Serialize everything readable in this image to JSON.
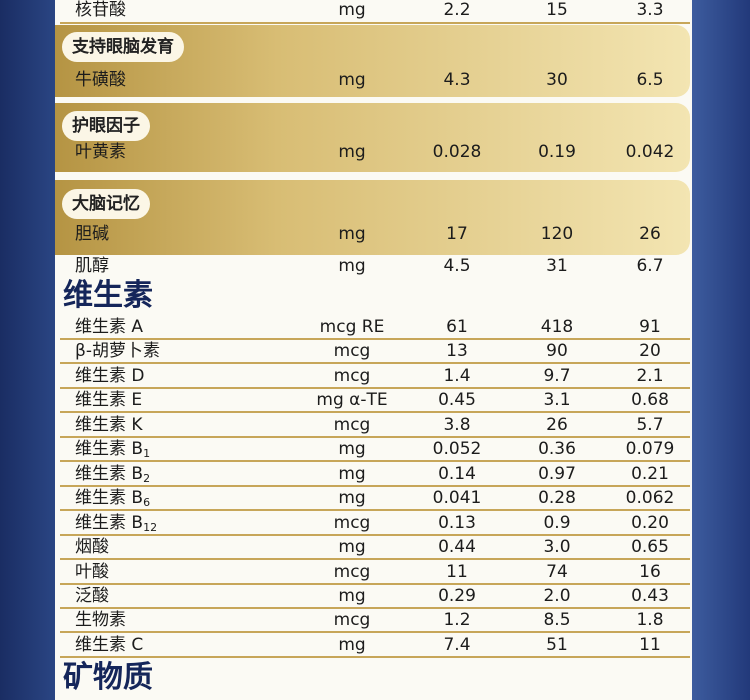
{
  "top_rows": [
    {
      "name": "核苷酸",
      "unit": "mg",
      "values": [
        "2.2",
        "15",
        "3.3"
      ]
    }
  ],
  "groups": [
    {
      "label": "支持眼脑发育",
      "rows": [
        {
          "name": "牛磺酸",
          "unit": "mg",
          "values": [
            "4.3",
            "30",
            "6.5"
          ]
        }
      ]
    },
    {
      "label": "护眼因子",
      "rows": [
        {
          "name": "叶黄素",
          "unit": "mg",
          "values": [
            "0.028",
            "0.19",
            "0.042"
          ]
        }
      ]
    },
    {
      "label": "大脑记忆",
      "rows": [
        {
          "name": "胆碱",
          "unit": "mg",
          "values": [
            "17",
            "120",
            "26"
          ]
        }
      ]
    }
  ],
  "after_rows": [
    {
      "name": "肌醇",
      "unit": "mg",
      "values": [
        "4.5",
        "31",
        "6.7"
      ]
    }
  ],
  "sections": [
    {
      "title": "维生素",
      "rows": [
        {
          "name": "维生素 A",
          "unit": "mcg RE",
          "values": [
            "61",
            "418",
            "91"
          ]
        },
        {
          "name": "β-胡萝卜素",
          "unit": "mcg",
          "values": [
            "13",
            "90",
            "20"
          ]
        },
        {
          "name": "维生素 D",
          "unit": "mcg",
          "values": [
            "1.4",
            "9.7",
            "2.1"
          ]
        },
        {
          "name": "维生素 E",
          "unit": "mg α-TE",
          "values": [
            "0.45",
            "3.1",
            "0.68"
          ]
        },
        {
          "name": "维生素 K",
          "unit": "mcg",
          "values": [
            "3.8",
            "26",
            "5.7"
          ]
        },
        {
          "name": "维生素 B",
          "sub": "1",
          "unit": "mg",
          "values": [
            "0.052",
            "0.36",
            "0.079"
          ]
        },
        {
          "name": "维生素 B",
          "sub": "2",
          "unit": "mg",
          "values": [
            "0.14",
            "0.97",
            "0.21"
          ]
        },
        {
          "name": "维生素 B",
          "sub": "6",
          "unit": "mg",
          "values": [
            "0.041",
            "0.28",
            "0.062"
          ]
        },
        {
          "name": "维生素 B",
          "sub": "12",
          "unit": "mcg",
          "values": [
            "0.13",
            "0.9",
            "0.20"
          ]
        },
        {
          "name": "烟酸",
          "unit": "mg",
          "values": [
            "0.44",
            "3.0",
            "0.65"
          ]
        },
        {
          "name": "叶酸",
          "unit": "mcg",
          "values": [
            "11",
            "74",
            "16"
          ]
        },
        {
          "name": "泛酸",
          "unit": "mg",
          "values": [
            "0.29",
            "2.0",
            "0.43"
          ]
        },
        {
          "name": "生物素",
          "unit": "mcg",
          "values": [
            "1.2",
            "8.5",
            "1.8"
          ]
        },
        {
          "name": "维生素 C",
          "unit": "mg",
          "values": [
            "7.4",
            "51",
            "11"
          ]
        }
      ]
    },
    {
      "title": "矿物质"
    }
  ]
}
